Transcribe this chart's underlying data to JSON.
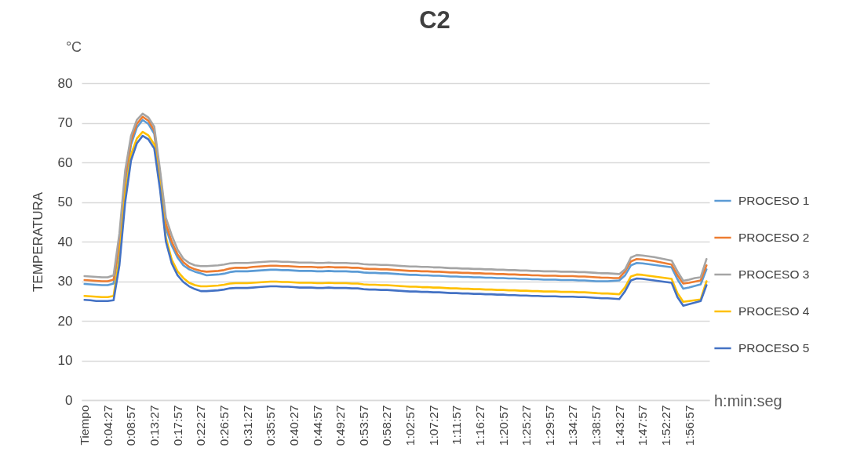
{
  "chart_data": {
    "type": "line",
    "title": "C2",
    "ylabel": "TEMPERATURA",
    "annotations": [
      "°C",
      "h:min:seg"
    ],
    "categories": [
      "Tiempo",
      null,
      null,
      null,
      "0:04:27",
      null,
      null,
      null,
      "0:08:57",
      null,
      null,
      null,
      "0:13:27",
      null,
      null,
      null,
      "0:17:57",
      null,
      null,
      null,
      "0:22:27",
      null,
      null,
      null,
      "0:26:57",
      null,
      null,
      null,
      "0:31:27",
      null,
      null,
      null,
      "0:35:57",
      null,
      null,
      null,
      "0:40:27",
      null,
      null,
      null,
      "0:44:57",
      null,
      null,
      null,
      "0:49:27",
      null,
      null,
      null,
      "0:53:57",
      null,
      null,
      null,
      "0:58:27",
      null,
      null,
      null,
      "1:02:57",
      null,
      null,
      null,
      "1:07:27",
      null,
      null,
      null,
      "1:11:57",
      null,
      null,
      null,
      "1:16:27",
      null,
      null,
      null,
      "1:20:57",
      null,
      null,
      null,
      "1:25:27",
      null,
      null,
      null,
      "1:29:57",
      null,
      null,
      null,
      "1:34:27",
      null,
      null,
      null,
      "1:38:57",
      null,
      null,
      null,
      "1:43:27",
      null,
      null,
      null,
      "1:47:57",
      null,
      null,
      null,
      "1:52:27",
      null,
      null,
      null,
      "1:56:57",
      null,
      null,
      null
    ],
    "ylim": [
      0,
      80
    ],
    "yticks": [
      0,
      10,
      20,
      30,
      40,
      50,
      60,
      70,
      80
    ],
    "grid": "y",
    "legend": "right",
    "marker": "none",
    "line_style": "solid",
    "series": [
      {
        "name": "PROCESO 1",
        "color": "#5b9bd5",
        "values": [
          29.3,
          29.2,
          29.1,
          29.0,
          29.0,
          29.4,
          39,
          55,
          64.5,
          68.8,
          70.7,
          69.7,
          67.2,
          56,
          43.5,
          39,
          36,
          34,
          33,
          32.4,
          32,
          31.5,
          31.6,
          31.7,
          31.9,
          32.3,
          32.5,
          32.5,
          32.5,
          32.6,
          32.7,
          32.8,
          32.9,
          32.9,
          32.8,
          32.8,
          32.7,
          32.6,
          32.6,
          32.6,
          32.5,
          32.5,
          32.6,
          32.5,
          32.5,
          32.5,
          32.4,
          32.4,
          32.2,
          32.1,
          32.1,
          32.0,
          32.0,
          31.9,
          31.8,
          31.7,
          31.6,
          31.6,
          31.5,
          31.5,
          31.4,
          31.4,
          31.3,
          31.2,
          31.2,
          31.1,
          31.1,
          31.0,
          31.0,
          30.9,
          30.9,
          30.8,
          30.8,
          30.7,
          30.7,
          30.6,
          30.6,
          30.5,
          30.5,
          30.4,
          30.4,
          30.4,
          30.3,
          30.3,
          30.3,
          30.2,
          30.2,
          30.1,
          30.0,
          30.0,
          30.0,
          30.1,
          30.2,
          31.5,
          34.0,
          34.6,
          34.5,
          34.3,
          34.1,
          33.9,
          33.7,
          33.5,
          30.5,
          28.1,
          28.4,
          28.8,
          29.2,
          33.0
        ]
      },
      {
        "name": "PROCESO 2",
        "color": "#ed7d31",
        "values": [
          30.3,
          30.2,
          30.1,
          30.0,
          30.0,
          30.4,
          40,
          56.5,
          65.5,
          69.7,
          71.5,
          70.5,
          68,
          57,
          44.5,
          40,
          36.8,
          34.8,
          33.6,
          33.0,
          32.6,
          32.4,
          32.5,
          32.6,
          32.8,
          33.2,
          33.4,
          33.4,
          33.4,
          33.6,
          33.7,
          33.8,
          33.9,
          33.9,
          33.8,
          33.8,
          33.7,
          33.6,
          33.6,
          33.6,
          33.5,
          33.5,
          33.6,
          33.5,
          33.5,
          33.5,
          33.4,
          33.4,
          33.2,
          33.1,
          33.1,
          33.0,
          33.0,
          32.9,
          32.8,
          32.7,
          32.6,
          32.6,
          32.5,
          32.5,
          32.4,
          32.4,
          32.3,
          32.2,
          32.2,
          32.1,
          32.1,
          32.0,
          32.0,
          31.9,
          31.9,
          31.8,
          31.8,
          31.7,
          31.7,
          31.6,
          31.6,
          31.5,
          31.5,
          31.4,
          31.4,
          31.4,
          31.3,
          31.3,
          31.3,
          31.2,
          31.2,
          31.1,
          31.0,
          30.9,
          30.9,
          30.8,
          30.8,
          32.5,
          35.0,
          35.6,
          35.5,
          35.3,
          35.1,
          34.8,
          34.5,
          34.2,
          31.5,
          29.4,
          29.6,
          29.9,
          30.2,
          34.0
        ]
      },
      {
        "name": "PROCESO 3",
        "color": "#a5a5a5",
        "values": [
          31.3,
          31.2,
          31.1,
          31.0,
          31.0,
          31.5,
          42,
          58,
          66.7,
          70.7,
          72.3,
          71.3,
          69,
          58,
          46,
          41.6,
          38,
          35.7,
          34.6,
          34.0,
          33.8,
          33.8,
          33.9,
          34.0,
          34.2,
          34.5,
          34.6,
          34.6,
          34.6,
          34.7,
          34.8,
          34.9,
          35.0,
          35.0,
          34.9,
          34.9,
          34.8,
          34.7,
          34.7,
          34.7,
          34.6,
          34.6,
          34.7,
          34.6,
          34.6,
          34.6,
          34.5,
          34.5,
          34.3,
          34.2,
          34.2,
          34.1,
          34.1,
          34.0,
          33.9,
          33.8,
          33.7,
          33.7,
          33.6,
          33.6,
          33.5,
          33.5,
          33.4,
          33.3,
          33.3,
          33.2,
          33.2,
          33.1,
          33.1,
          33.0,
          33.0,
          32.9,
          32.9,
          32.8,
          32.8,
          32.7,
          32.7,
          32.6,
          32.6,
          32.5,
          32.5,
          32.5,
          32.4,
          32.4,
          32.4,
          32.3,
          32.3,
          32.2,
          32.1,
          32.0,
          32.0,
          31.9,
          31.8,
          33,
          36.0,
          36.6,
          36.5,
          36.3,
          36.1,
          35.8,
          35.5,
          35.2,
          32.5,
          30.1,
          30.4,
          30.8,
          31.0,
          35.6
        ]
      },
      {
        "name": "PROCESO 4",
        "color": "#ffc000",
        "values": [
          26.3,
          26.2,
          26.1,
          26.0,
          26.0,
          26.3,
          36,
          52,
          62,
          66,
          67.7,
          66.8,
          64.5,
          54,
          41,
          35.5,
          32.5,
          30.8,
          29.6,
          29.0,
          28.7,
          28.7,
          28.8,
          28.9,
          29.1,
          29.4,
          29.5,
          29.5,
          29.5,
          29.6,
          29.7,
          29.8,
          29.9,
          29.9,
          29.8,
          29.8,
          29.7,
          29.6,
          29.6,
          29.6,
          29.5,
          29.5,
          29.6,
          29.5,
          29.5,
          29.5,
          29.4,
          29.4,
          29.2,
          29.1,
          29.1,
          29.0,
          29.0,
          28.9,
          28.8,
          28.7,
          28.6,
          28.6,
          28.5,
          28.5,
          28.4,
          28.4,
          28.3,
          28.2,
          28.2,
          28.1,
          28.1,
          28.0,
          28.0,
          27.9,
          27.9,
          27.8,
          27.8,
          27.7,
          27.7,
          27.6,
          27.6,
          27.5,
          27.5,
          27.4,
          27.4,
          27.4,
          27.3,
          27.3,
          27.3,
          27.2,
          27.2,
          27.1,
          27.0,
          26.9,
          26.9,
          26.8,
          26.7,
          28.5,
          31.2,
          31.7,
          31.6,
          31.4,
          31.2,
          31.0,
          30.8,
          30.6,
          27,
          24.8,
          25.0,
          25.2,
          25.4,
          30.0
        ]
      },
      {
        "name": "PROCESO 5",
        "color": "#4472c4",
        "values": [
          25.3,
          25.2,
          25.0,
          25.0,
          25.0,
          25.2,
          34,
          50,
          60.5,
          64.8,
          66.7,
          65.8,
          63.5,
          53,
          40,
          34.5,
          31.5,
          29.8,
          28.7,
          28.0,
          27.5,
          27.5,
          27.6,
          27.7,
          27.9,
          28.2,
          28.3,
          28.3,
          28.3,
          28.4,
          28.5,
          28.6,
          28.7,
          28.7,
          28.6,
          28.6,
          28.5,
          28.4,
          28.4,
          28.4,
          28.3,
          28.3,
          28.4,
          28.3,
          28.3,
          28.3,
          28.2,
          28.2,
          28.0,
          27.9,
          27.9,
          27.8,
          27.8,
          27.7,
          27.6,
          27.5,
          27.4,
          27.4,
          27.3,
          27.3,
          27.2,
          27.2,
          27.1,
          27.0,
          27.0,
          26.9,
          26.9,
          26.8,
          26.8,
          26.7,
          26.7,
          26.6,
          26.6,
          26.5,
          26.5,
          26.4,
          26.4,
          26.3,
          26.3,
          26.2,
          26.2,
          26.2,
          26.1,
          26.1,
          26.1,
          26.0,
          26.0,
          25.9,
          25.8,
          25.7,
          25.7,
          25.6,
          25.5,
          27.5,
          30.2,
          30.7,
          30.6,
          30.4,
          30.2,
          30.0,
          29.8,
          29.6,
          26,
          23.8,
          24.2,
          24.6,
          25.0,
          29.0
        ]
      }
    ]
  }
}
